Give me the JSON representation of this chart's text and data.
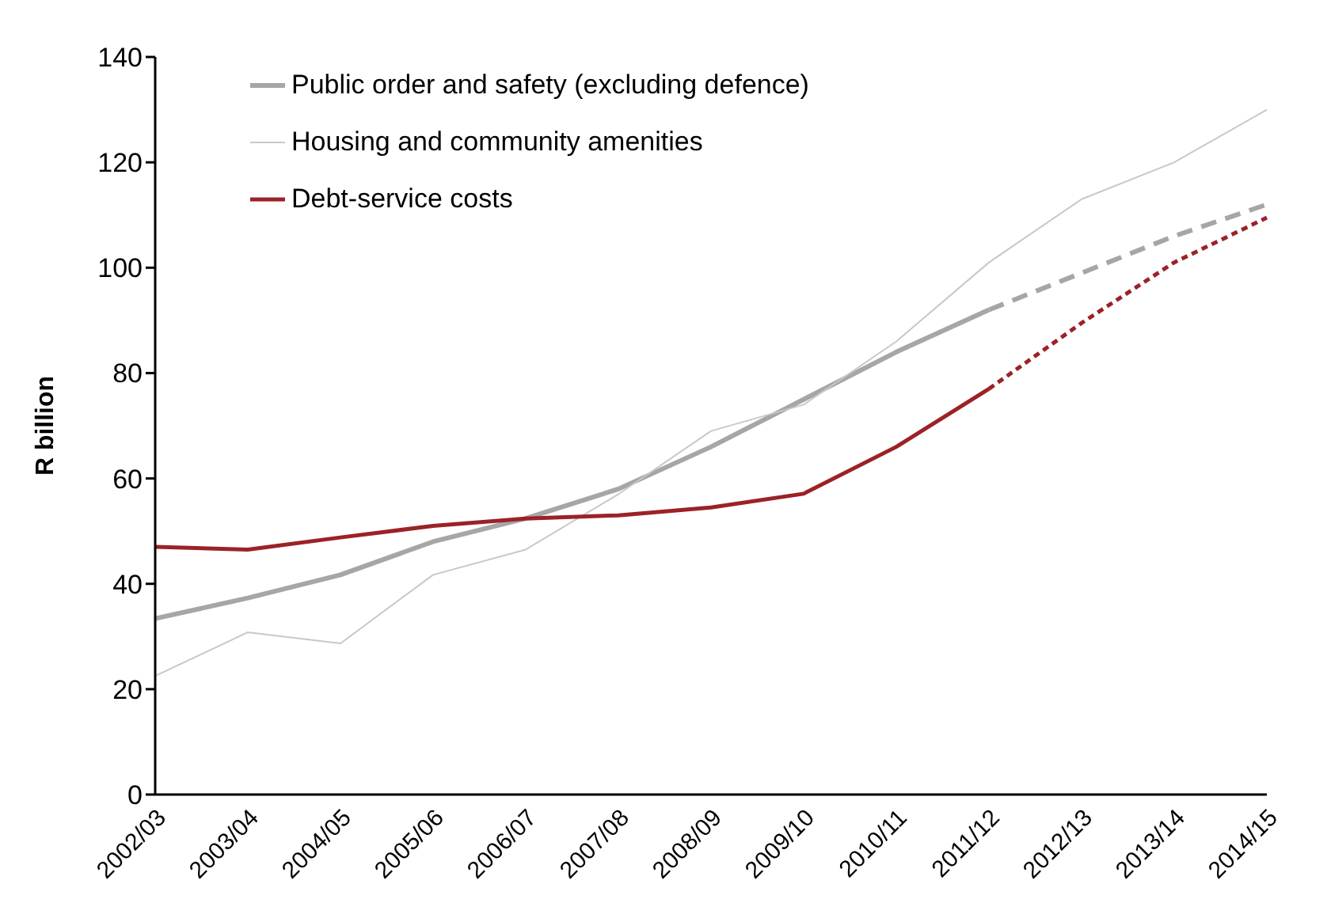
{
  "chart_data": {
    "type": "line",
    "ylabel": "R billion",
    "categories": [
      "2002/03",
      "2003/04",
      "2004/05",
      "2005/06",
      "2006/07",
      "2007/08",
      "2008/09",
      "2009/10",
      "2010/11",
      "2011/12",
      "2012/13",
      "2013/14",
      "2014/15"
    ],
    "series": [
      {
        "name": "Public order and safety (excluding defence)",
        "color": "#a6a6a6",
        "values": [
          33.4,
          37.3,
          41.7,
          48,
          52.4,
          58,
          66,
          75,
          84,
          92,
          null,
          null,
          null
        ]
      },
      {
        "name": "Housing and community amenities",
        "color": "#c8c8c8",
        "values": [
          22.5,
          30.8,
          28.7,
          41.7,
          46.5,
          57,
          69,
          74,
          86,
          101,
          113,
          120,
          130
        ]
      },
      {
        "name": "Debt-service costs",
        "color": "#9b2226",
        "values": [
          47,
          46.5,
          48.8,
          51,
          52.4,
          53,
          54.5,
          57.1,
          66,
          77,
          null,
          null,
          null
        ]
      },
      {
        "color": "#a6a6a6",
        "line_style": "dashed",
        "values": [
          null,
          null,
          null,
          null,
          null,
          null,
          null,
          null,
          null,
          92,
          99,
          106,
          112
        ]
      },
      {
        "color": "#9b2226",
        "line_style": "dotted",
        "values": [
          null,
          null,
          null,
          null,
          null,
          null,
          null,
          null,
          null,
          77,
          89.5,
          101,
          109.5
        ]
      }
    ],
    "ylim": [
      0,
      140
    ],
    "yticks": [
      0,
      20,
      40,
      60,
      80,
      100,
      120,
      140
    ],
    "grid": false,
    "legend": "top left",
    "marker": "none"
  }
}
